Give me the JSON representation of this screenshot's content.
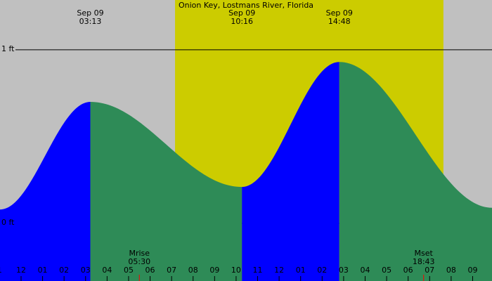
{
  "chart_data": {
    "type": "tide",
    "title": "Onion Key, Lostmans River, Florida",
    "x": [
      -0.98,
      3.22,
      10.27,
      14.8,
      21.9
    ],
    "values": [
      0.08,
      0.7,
      0.21,
      0.93,
      0.09
    ],
    "dates": [
      null,
      "Sep 09",
      "Sep 09",
      "Sep 09",
      null
    ],
    "times": [
      null,
      "03:13",
      "10:16",
      "14:48",
      null
    ],
    "rising_color": "#0000ff",
    "falling_color": "#2e8b57",
    "background_color": "#c0c0c0",
    "daylight_color": "#cccc00",
    "daylight": [
      7.16,
      19.64
    ],
    "xlim": [
      -0.98,
      21.9
    ],
    "ylim": [
      -0.332,
      1.287
    ],
    "yticks": [
      {
        "value": 0,
        "label": "0 ft"
      },
      {
        "value": 1,
        "label": "1 ft"
      }
    ],
    "xticks": [
      {
        "value": -1,
        "label": "1"
      },
      {
        "value": 0,
        "label": "12"
      },
      {
        "value": 1,
        "label": "01"
      },
      {
        "value": 2,
        "label": "02"
      },
      {
        "value": 3,
        "label": "03"
      },
      {
        "value": 4,
        "label": "04"
      },
      {
        "value": 5,
        "label": "05"
      },
      {
        "value": 6,
        "label": "06"
      },
      {
        "value": 7,
        "label": "07"
      },
      {
        "value": 8,
        "label": "08"
      },
      {
        "value": 9,
        "label": "09"
      },
      {
        "value": 10,
        "label": "10"
      },
      {
        "value": 11,
        "label": "11"
      },
      {
        "value": 12,
        "label": "12"
      },
      {
        "value": 13,
        "label": "01"
      },
      {
        "value": 14,
        "label": "02"
      },
      {
        "value": 15,
        "label": "03"
      },
      {
        "value": 16,
        "label": "04"
      },
      {
        "value": 17,
        "label": "05"
      },
      {
        "value": 18,
        "label": "06"
      },
      {
        "value": 19,
        "label": "07"
      },
      {
        "value": 20,
        "label": "08"
      },
      {
        "value": 21,
        "label": "09"
      }
    ],
    "moon": [
      {
        "label": "Mrise",
        "time": "05:30",
        "x": 5.5
      },
      {
        "label": "Mset",
        "time": "18:43",
        "x": 18.72
      }
    ]
  }
}
